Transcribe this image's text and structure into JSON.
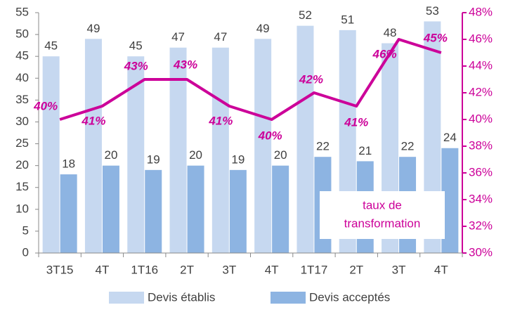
{
  "chart_data": {
    "type": "bar",
    "categories": [
      "3T15",
      "4T",
      "1T16",
      "2T",
      "3T",
      "4T",
      "1T17",
      "2T",
      "3T",
      "4T"
    ],
    "series": [
      {
        "name": "Devis établis",
        "color": "#c6d8f0",
        "values": [
          45,
          49,
          45,
          47,
          47,
          49,
          52,
          51,
          48,
          53
        ]
      },
      {
        "name": "Devis acceptés",
        "color": "#8db4e2",
        "values": [
          18,
          20,
          19,
          20,
          19,
          20,
          22,
          21,
          22,
          24
        ]
      },
      {
        "name": "taux de transformation",
        "type": "line",
        "axis": "y2",
        "color": "#cc0099",
        "values": [
          40,
          41,
          43,
          43,
          41,
          40,
          42,
          41,
          46,
          45
        ],
        "value_labels": [
          "40%",
          "41%",
          "43%",
          "43%",
          "41%",
          "40%",
          "42%",
          "41%",
          "46%",
          "45%"
        ]
      }
    ],
    "annotation": [
      "taux de",
      "transformation"
    ],
    "ylim": [
      0,
      55
    ],
    "yticks": [
      0,
      5,
      10,
      15,
      20,
      25,
      30,
      35,
      40,
      45,
      50,
      55
    ],
    "y2lim": [
      30,
      48
    ],
    "y2ticks": [
      {
        "value": 30,
        "label": "30%"
      },
      {
        "value": 32,
        "label": "32%"
      },
      {
        "value": 34,
        "label": "34%"
      },
      {
        "value": 36,
        "label": "36%"
      },
      {
        "value": 38,
        "label": "38%"
      },
      {
        "value": 40,
        "label": "40%"
      },
      {
        "value": 42,
        "label": "42%"
      },
      {
        "value": 44,
        "label": "44%"
      },
      {
        "value": 46,
        "label": "46%"
      },
      {
        "value": 48,
        "label": "48%"
      }
    ],
    "legend": "bottom"
  }
}
